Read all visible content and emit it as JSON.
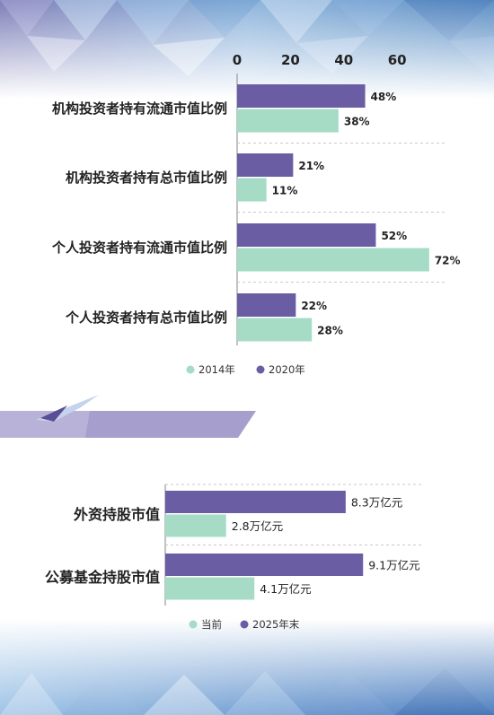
{
  "colors": {
    "series_a": "#a6dcc5",
    "series_b": "#6a5da3",
    "gridline": "#c9c9c9",
    "axis": "#9a9a9a"
  },
  "chart_data": [
    {
      "type": "bar",
      "orientation": "horizontal",
      "categories": [
        "机构投资者持有流通市值比例",
        "机构投资者持有总市值比例",
        "个人投资者持有流通市值比例",
        "个人投资者持有总市值比例"
      ],
      "series": [
        {
          "name": "2020年",
          "values": [
            48,
            21,
            52,
            22
          ],
          "labels": [
            "48%",
            "21%",
            "52%",
            "22%"
          ]
        },
        {
          "name": "2014年",
          "values": [
            38,
            11,
            72,
            28
          ],
          "labels": [
            "38%",
            "11%",
            "72%",
            "28%"
          ]
        }
      ],
      "legend": [
        "2014年",
        "2020年"
      ],
      "xticks": [
        "0",
        "20",
        "40",
        "60"
      ],
      "xlim": [
        0,
        75
      ],
      "xaxis_position": "top",
      "grid": false
    },
    {
      "type": "bar",
      "orientation": "horizontal",
      "categories": [
        "外资持股市值",
        "公募基金持股市值"
      ],
      "series": [
        {
          "name": "2025年末",
          "values": [
            8.3,
            9.1
          ],
          "labels": [
            "8.3万亿元",
            "9.1万亿元"
          ]
        },
        {
          "name": "当前",
          "values": [
            2.8,
            4.1
          ],
          "labels": [
            "2.8万亿元",
            "4.1万亿元"
          ]
        }
      ],
      "legend": [
        "当前",
        "2025年末"
      ],
      "xlim": [
        0,
        10
      ],
      "grid": false
    }
  ]
}
